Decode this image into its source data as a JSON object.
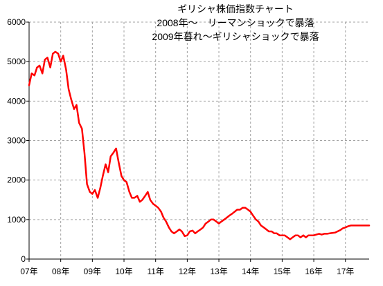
{
  "chart_data": {
    "type": "line",
    "title_lines": [
      "ギリシャ株価指数チャート",
      "2008年～　リーマンショックで暴落",
      "2009年暮れ～ギリシャショックで暴落"
    ],
    "xlabel": "",
    "ylabel": "",
    "ylim": [
      0,
      6000
    ],
    "yticks": [
      0,
      1000,
      2000,
      3000,
      4000,
      5000,
      6000
    ],
    "xlim": [
      2007.0,
      2017.75
    ],
    "x_ticks": [
      {
        "pos": 2007,
        "label": "07年"
      },
      {
        "pos": 2008,
        "label": "08年"
      },
      {
        "pos": 2009,
        "label": "09年"
      },
      {
        "pos": 2010,
        "label": "10年"
      },
      {
        "pos": 2011,
        "label": "11年"
      },
      {
        "pos": 2012,
        "label": "12年"
      },
      {
        "pos": 2013,
        "label": "13年"
      },
      {
        "pos": 2014,
        "label": "14年"
      },
      {
        "pos": 2015,
        "label": "15年"
      },
      {
        "pos": 2016,
        "label": "16年"
      },
      {
        "pos": 2017,
        "label": "17年"
      }
    ],
    "grid": {
      "x": true,
      "y": true,
      "style": "dashed"
    },
    "legend": "none",
    "colors": {
      "series": "#ff0000",
      "grid": "#a0a0a0",
      "axis": "#000000"
    },
    "series": [
      {
        "x": [
          2007.0,
          2007.08,
          2007.17,
          2007.25,
          2007.33,
          2007.42,
          2007.5,
          2007.58,
          2007.67,
          2007.75,
          2007.83,
          2007.92,
          2008.0,
          2008.08,
          2008.17,
          2008.25,
          2008.33,
          2008.42,
          2008.5,
          2008.58,
          2008.67,
          2008.75,
          2008.83,
          2008.92,
          2009.0,
          2009.08,
          2009.17,
          2009.25,
          2009.33,
          2009.42,
          2009.5,
          2009.58,
          2009.67,
          2009.75,
          2009.83,
          2009.92,
          2010.0,
          2010.08,
          2010.17,
          2010.25,
          2010.33,
          2010.42,
          2010.5,
          2010.58,
          2010.67,
          2010.75,
          2010.83,
          2010.92,
          2011.0,
          2011.08,
          2011.17,
          2011.25,
          2011.33,
          2011.42,
          2011.5,
          2011.58,
          2011.67,
          2011.75,
          2011.83,
          2011.92,
          2012.0,
          2012.08,
          2012.17,
          2012.25,
          2012.33,
          2012.42,
          2012.5,
          2012.58,
          2012.67,
          2012.75,
          2012.83,
          2012.92,
          2013.0,
          2013.08,
          2013.17,
          2013.25,
          2013.33,
          2013.42,
          2013.5,
          2013.58,
          2013.67,
          2013.75,
          2013.83,
          2013.92,
          2014.0,
          2014.08,
          2014.17,
          2014.25,
          2014.33,
          2014.42,
          2014.5,
          2014.58,
          2014.67,
          2014.75,
          2014.83,
          2014.92,
          2015.0,
          2015.08,
          2015.17,
          2015.25,
          2015.33,
          2015.42,
          2015.5,
          2015.58,
          2015.67,
          2015.75,
          2015.83,
          2015.92,
          2016.0,
          2016.08,
          2016.17,
          2016.25,
          2016.33,
          2016.42,
          2016.5,
          2016.58,
          2016.67,
          2016.75,
          2016.83,
          2016.92,
          2017.0,
          2017.08,
          2017.17,
          2017.25,
          2017.33,
          2017.42,
          2017.5,
          2017.58,
          2017.67,
          2017.75
        ],
        "values": [
          4400,
          4700,
          4650,
          4850,
          4900,
          4700,
          5050,
          5100,
          4850,
          5200,
          5250,
          5200,
          5000,
          5150,
          4800,
          4300,
          4050,
          3800,
          3900,
          3450,
          3300,
          2700,
          1900,
          1700,
          1650,
          1750,
          1550,
          1800,
          2100,
          2400,
          2200,
          2600,
          2700,
          2800,
          2450,
          2100,
          2000,
          1950,
          1700,
          1550,
          1550,
          1600,
          1450,
          1500,
          1600,
          1700,
          1500,
          1400,
          1350,
          1300,
          1200,
          1050,
          950,
          800,
          700,
          650,
          700,
          750,
          700,
          580,
          600,
          700,
          720,
          650,
          700,
          750,
          800,
          900,
          950,
          1000,
          1000,
          950,
          900,
          950,
          1000,
          1050,
          1100,
          1150,
          1200,
          1250,
          1250,
          1300,
          1300,
          1250,
          1200,
          1100,
          1000,
          950,
          850,
          800,
          750,
          700,
          700,
          650,
          650,
          600,
          600,
          600,
          550,
          500,
          550,
          600,
          600,
          550,
          600,
          550,
          600,
          600,
          600,
          620,
          640,
          620,
          640,
          640,
          650,
          660,
          670,
          700,
          730,
          780,
          800,
          830,
          850,
          850,
          850,
          850,
          850,
          850,
          850,
          850
        ]
      }
    ]
  }
}
